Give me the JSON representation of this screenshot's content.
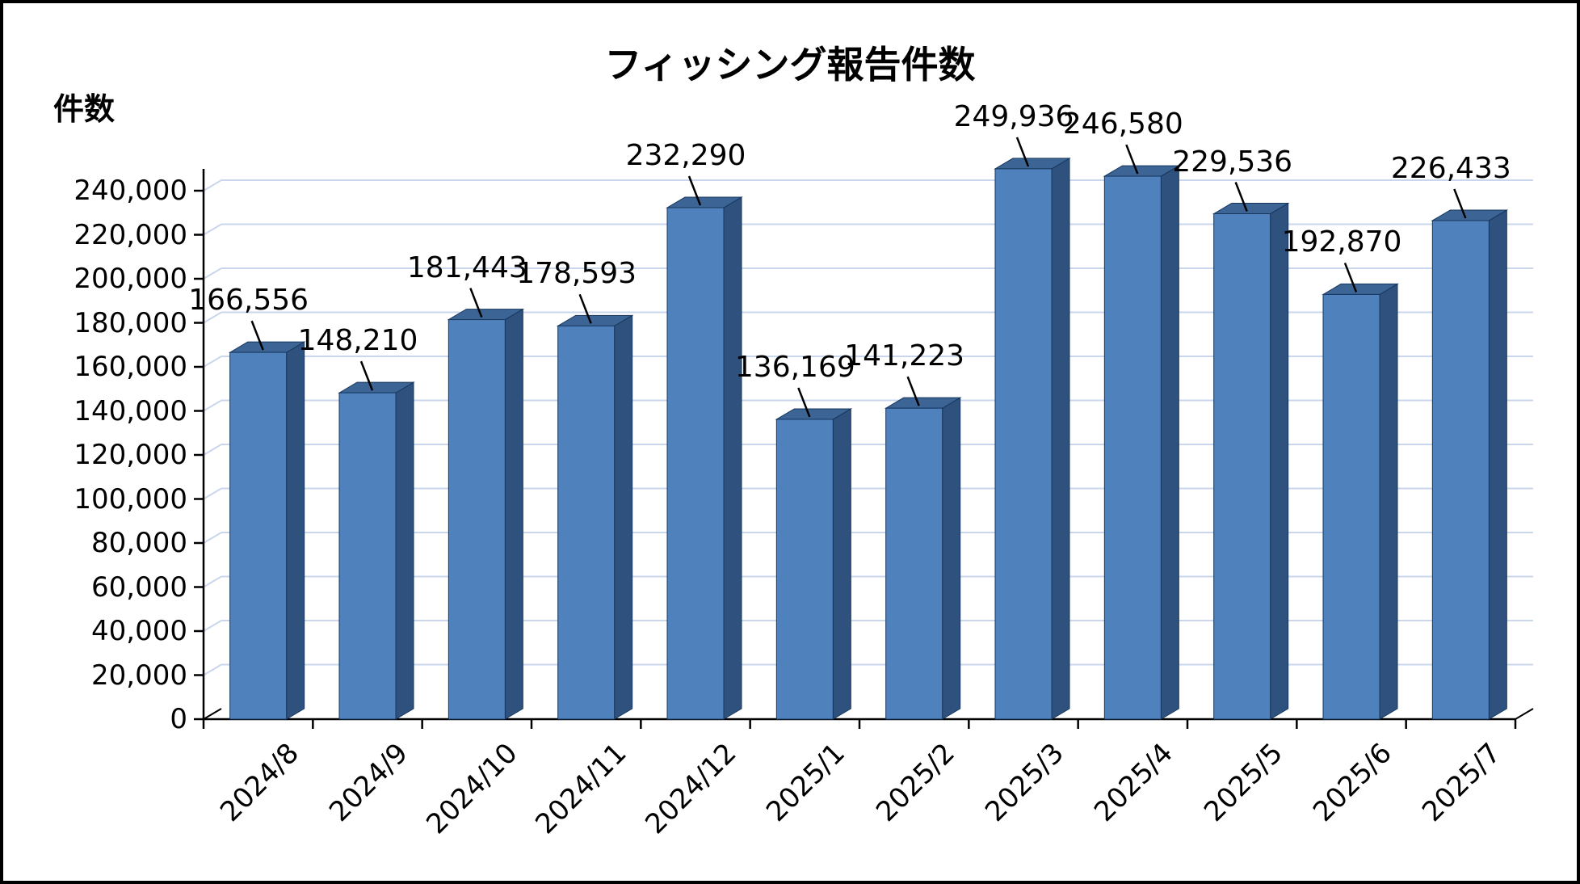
{
  "chart_data": {
    "type": "bar",
    "style": "3d-column",
    "title": "フィッシング報告件数",
    "ylabel": "件数",
    "xlabel": "",
    "categories": [
      "2024/8",
      "2024/9",
      "2024/10",
      "2024/11",
      "2024/12",
      "2025/1",
      "2025/2",
      "2025/3",
      "2025/4",
      "2025/5",
      "2025/6",
      "2025/7"
    ],
    "values": [
      166556,
      148210,
      181443,
      178593,
      232290,
      136169,
      141223,
      249936,
      246580,
      229536,
      192870,
      226433
    ],
    "value_labels": [
      "166,556",
      "148,210",
      "181,443",
      "178,593",
      "232,290",
      "136,169",
      "141,223",
      "249,936",
      "246,580",
      "229,536",
      "192,870",
      "226,433"
    ],
    "ylim": [
      0,
      240000
    ],
    "ytick_step": 20000,
    "ytick_labels": [
      "0",
      "20,000",
      "40,000",
      "60,000",
      "80,000",
      "100,000",
      "120,000",
      "140,000",
      "160,000",
      "180,000",
      "200,000",
      "220,000",
      "240,000"
    ],
    "grid": true,
    "legend": "none",
    "bar_color": "#4f81bd",
    "bar_side_color": "#2e517e",
    "bar_top_color": "#3c6595",
    "bar_outline_color": "#17375e",
    "grid_color": "#c9d6ec",
    "axis_color": "#000000"
  }
}
